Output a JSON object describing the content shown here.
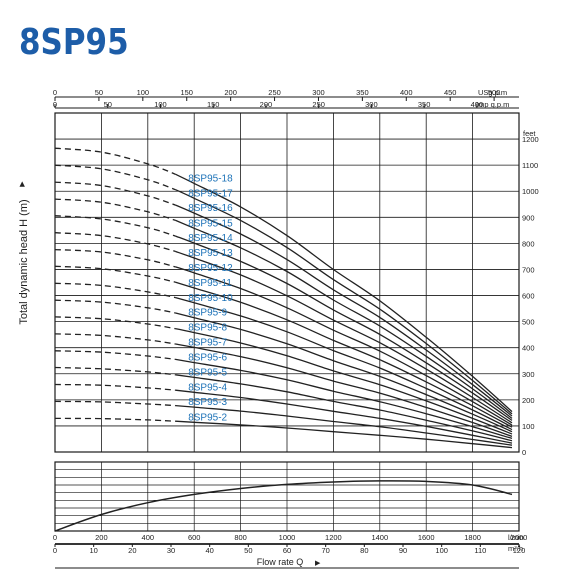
{
  "title": "8SP95",
  "colors": {
    "title": "#1d5da8",
    "curve_label": "#1e73b8",
    "curve": "#222222",
    "grid": "#1a1a1a"
  },
  "chart_data": [
    {
      "type": "line",
      "description_role": "head curves",
      "ylabel": "Total dynamic head H (m)",
      "right_unit": "feet",
      "top_units": {
        "us": "USg.p.m",
        "imp": "Imp g.p.m"
      },
      "bottom_units": {
        "lmin": "l/min",
        "m3h": "m³/h"
      },
      "xlabel": "Flow rate Q",
      "xlim": [
        0,
        2000
      ],
      "ylim": [
        0,
        1300
      ],
      "y_unit": "feet",
      "x_unit": "l/min",
      "usgpm_ticks": [
        "0",
        "50",
        "100",
        "150",
        "200",
        "250",
        "300",
        "350",
        "400",
        "450",
        "500"
      ],
      "impgpm_ticks": [
        "0",
        "50",
        "100",
        "150",
        "200",
        "250",
        "300",
        "350",
        "400"
      ],
      "feet_ticks": [
        "0",
        "100",
        "200",
        "300",
        "400",
        "500",
        "600",
        "700",
        "800",
        "900",
        "1000",
        "1100",
        "1200"
      ],
      "lmin_ticks": [
        "0",
        "200",
        "400",
        "600",
        "800",
        "1000",
        "1200",
        "1400",
        "1600",
        "1800",
        "2000"
      ],
      "m3h_ticks": [
        "0",
        "10",
        "20",
        "30",
        "40",
        "50",
        "60",
        "70",
        "80",
        "90",
        "100",
        "110",
        "120"
      ],
      "dashed_until": 520,
      "x": [
        0,
        200,
        400,
        520,
        600,
        800,
        1000,
        1200,
        1400,
        1600,
        1800,
        1970
      ],
      "series": [
        {
          "name": "8SP95-18",
          "values": [
            1165,
            1150,
            1105,
            1065,
            1030,
            940,
            830,
            700,
            580,
            440,
            290,
            155
          ]
        },
        {
          "name": "8SP95-17",
          "values": [
            1100,
            1086,
            1044,
            1006,
            973,
            888,
            784,
            661,
            548,
            416,
            274,
            146
          ]
        },
        {
          "name": "8SP95-16",
          "values": [
            1035,
            1022,
            982,
            947,
            916,
            836,
            738,
            622,
            516,
            391,
            258,
            138
          ]
        },
        {
          "name": "8SP95-15",
          "values": [
            970,
            958,
            921,
            888,
            858,
            783,
            692,
            583,
            483,
            367,
            242,
            129
          ]
        },
        {
          "name": "8SP95-14",
          "values": [
            906,
            894,
            860,
            828,
            801,
            731,
            646,
            545,
            451,
            342,
            226,
            121
          ]
        },
        {
          "name": "8SP95-13",
          "values": [
            841,
            830,
            798,
            769,
            744,
            679,
            599,
            506,
            419,
            318,
            209,
            112
          ]
        },
        {
          "name": "8SP95-12",
          "values": [
            776,
            767,
            737,
            710,
            687,
            627,
            553,
            467,
            387,
            293,
            193,
            103
          ]
        },
        {
          "name": "8SP95-11",
          "values": [
            712,
            703,
            675,
            651,
            629,
            574,
            507,
            428,
            354,
            269,
            177,
            95
          ]
        },
        {
          "name": "8SP95-10",
          "values": [
            647,
            639,
            614,
            592,
            572,
            522,
            461,
            389,
            322,
            244,
            161,
            86
          ]
        },
        {
          "name": "8SP95-9",
          "values": [
            582,
            575,
            553,
            533,
            515,
            470,
            415,
            350,
            290,
            220,
            145,
            78
          ]
        },
        {
          "name": "8SP95-8",
          "values": [
            518,
            511,
            491,
            473,
            458,
            418,
            369,
            311,
            258,
            196,
            129,
            69
          ]
        },
        {
          "name": "8SP95-7",
          "values": [
            453,
            447,
            430,
            414,
            401,
            366,
            323,
            272,
            226,
            171,
            113,
            60
          ]
        },
        {
          "name": "8SP95-6",
          "values": [
            388,
            383,
            368,
            355,
            343,
            313,
            277,
            233,
            193,
            147,
            97,
            52
          ]
        },
        {
          "name": "8SP95-5",
          "values": [
            324,
            319,
            307,
            296,
            286,
            261,
            231,
            194,
            161,
            122,
            81,
            43
          ]
        },
        {
          "name": "8SP95-4",
          "values": [
            259,
            256,
            246,
            237,
            229,
            209,
            184,
            156,
            129,
            98,
            64,
            34
          ]
        },
        {
          "name": "8SP95-3",
          "values": [
            194,
            192,
            184,
            178,
            172,
            157,
            138,
            117,
            97,
            73,
            48,
            26
          ]
        },
        {
          "name": "8SP95-2",
          "values": [
            129,
            128,
            123,
            118,
            114,
            104,
            92,
            78,
            64,
            49,
            32,
            17
          ]
        }
      ]
    },
    {
      "type": "line",
      "description_role": "efficiency curve",
      "xlim": [
        0,
        2000
      ],
      "ylim": [
        0,
        1
      ],
      "x": [
        0,
        200,
        400,
        600,
        800,
        1000,
        1200,
        1400,
        1600,
        1800,
        1970
      ],
      "values": [
        0.0,
        0.28,
        0.48,
        0.62,
        0.72,
        0.79,
        0.83,
        0.85,
        0.84,
        0.78,
        0.62
      ]
    }
  ]
}
